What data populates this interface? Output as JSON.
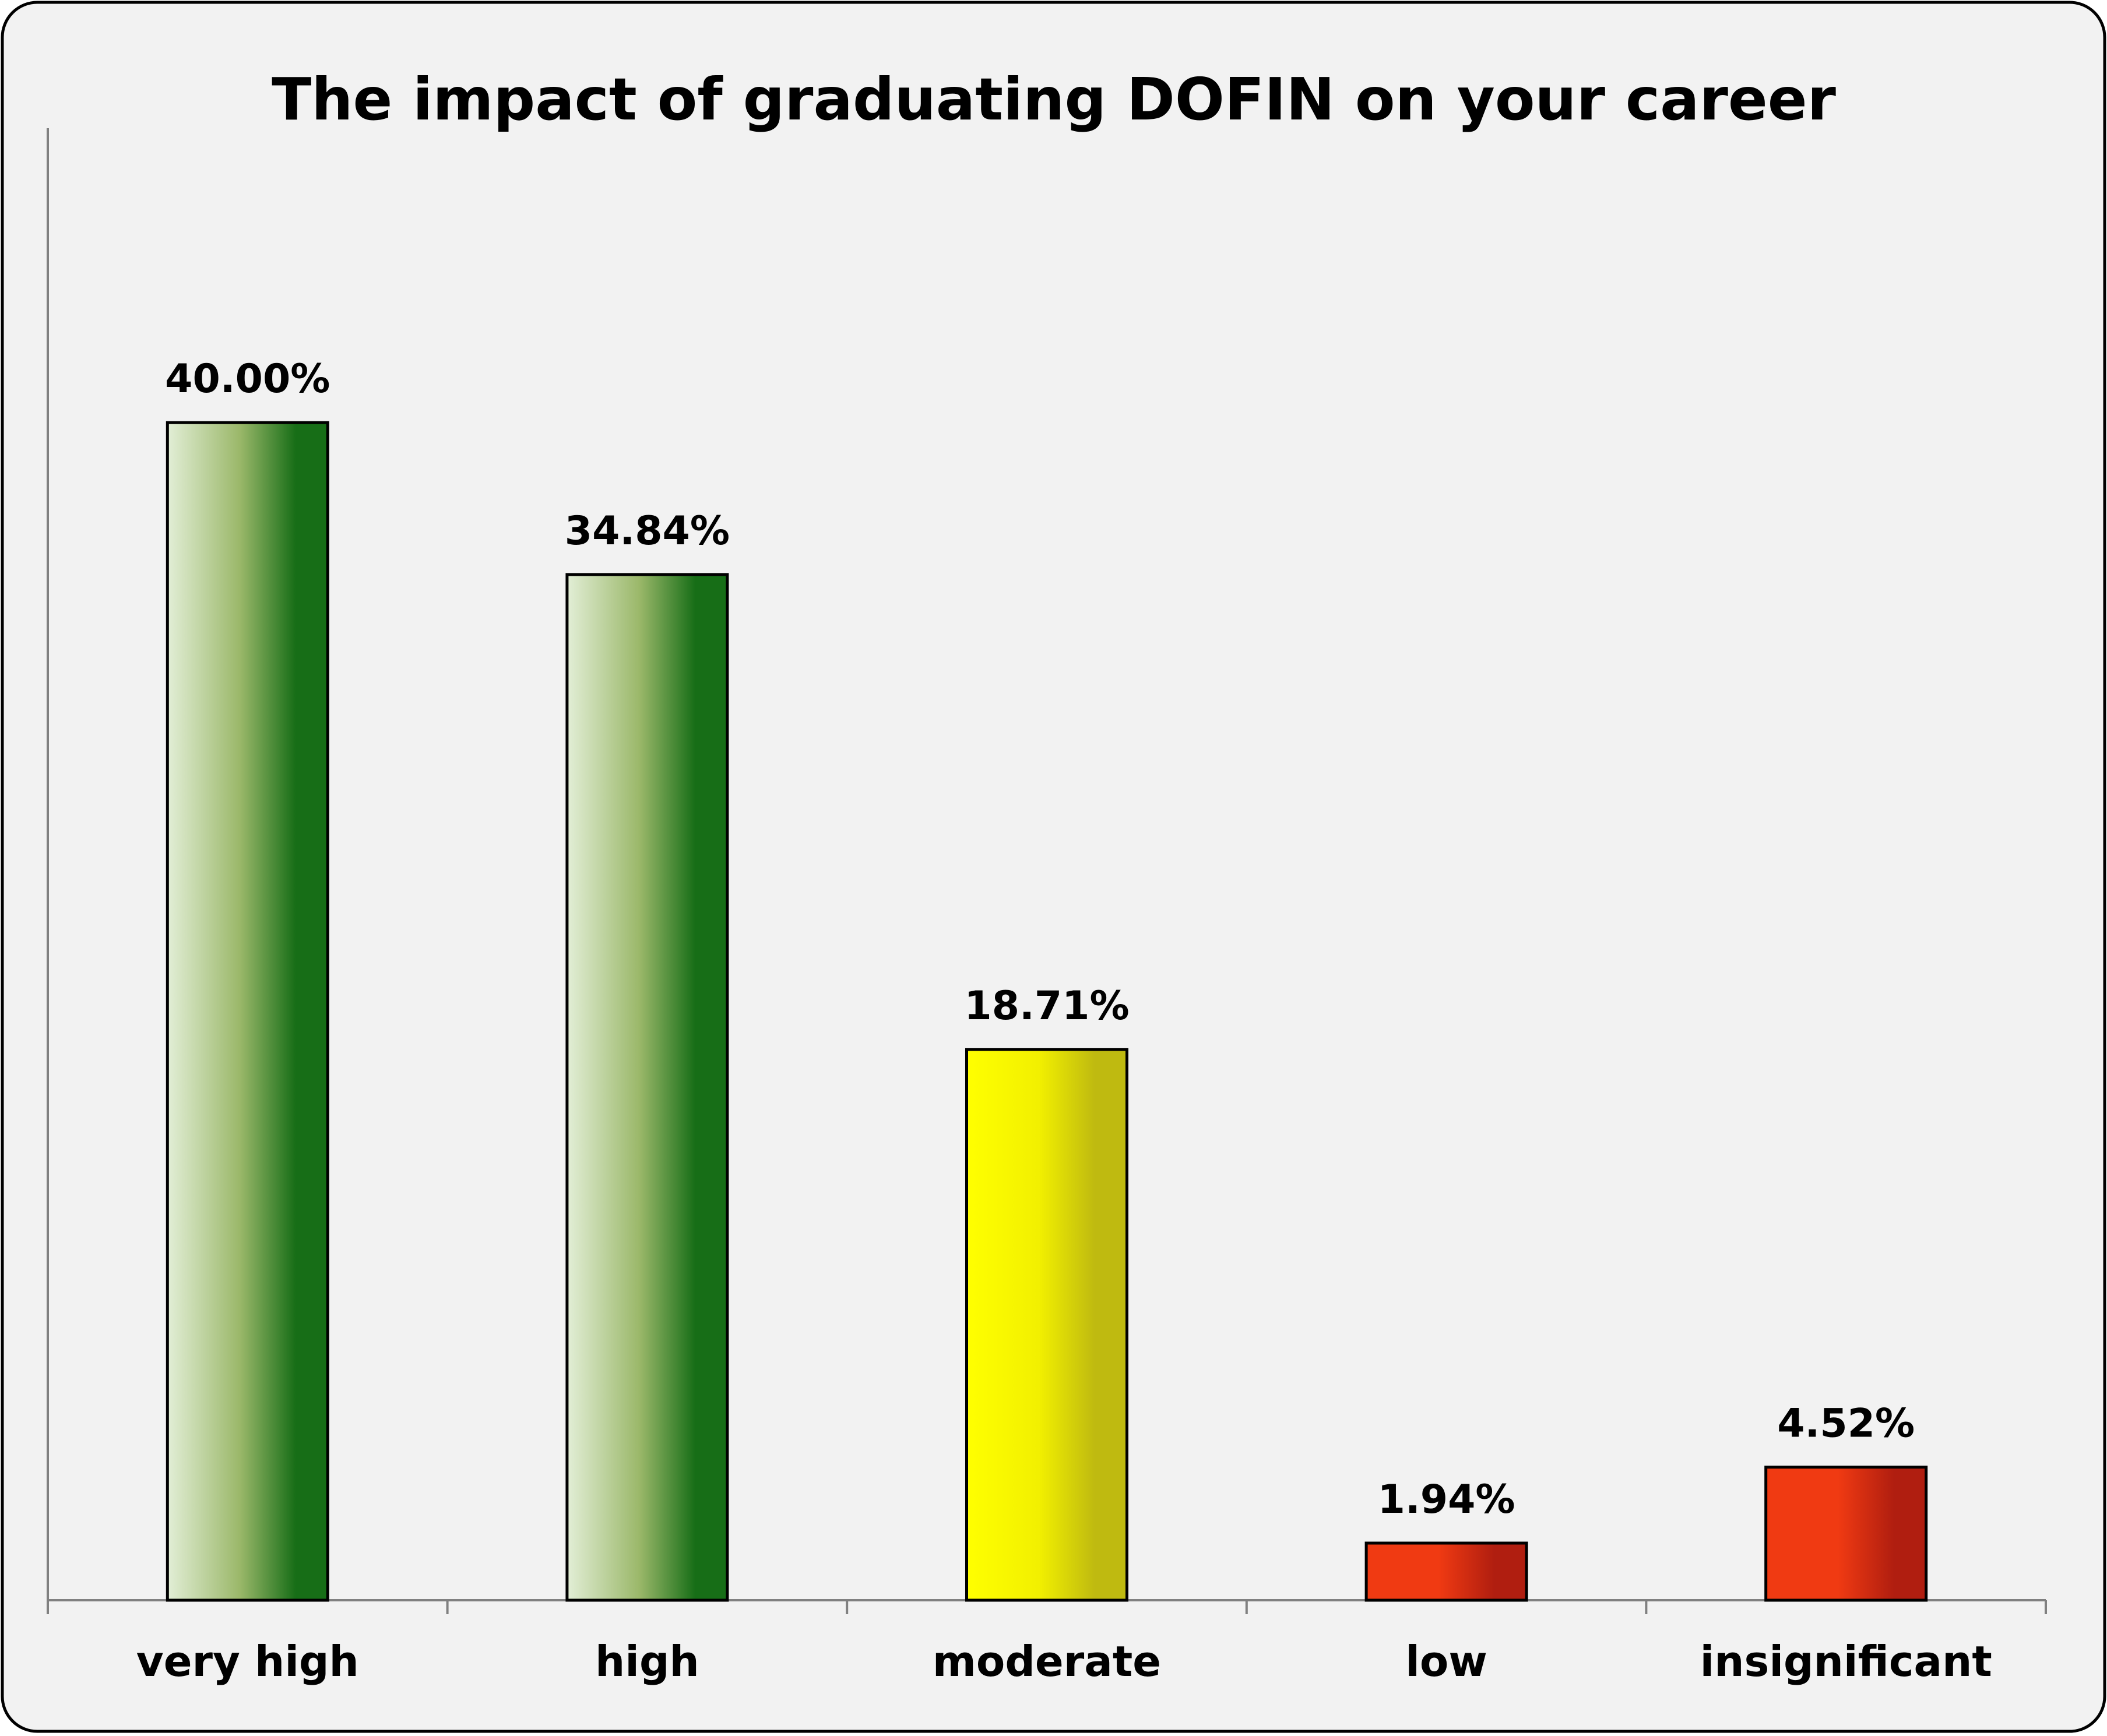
{
  "chart_data": {
    "type": "bar",
    "title": "The impact of graduating DOFIN on your career",
    "categories": [
      "very high",
      "high",
      "moderate",
      "low",
      "insignificant"
    ],
    "values": [
      40.0,
      34.84,
      18.71,
      1.94,
      4.52
    ],
    "value_labels": [
      "40.00%",
      "34.84%",
      "18.71%",
      "1.94%",
      "4.52%"
    ],
    "unit": "%",
    "ylim": [
      0,
      45
    ],
    "grid": false,
    "legend": "none",
    "xlabel": "",
    "ylabel": "",
    "bar_colors": [
      {
        "light": "#e2eed6",
        "mid": "#9bb86a",
        "dark": "#176e17"
      },
      {
        "light": "#e2eed6",
        "mid": "#9bb86a",
        "dark": "#176e17"
      },
      {
        "light": "#ffff00",
        "mid": "#f2f000",
        "dark": "#bfba10"
      },
      {
        "light": "#f03a12",
        "mid": "#f03a12",
        "dark": "#b01e10"
      },
      {
        "light": "#f03a12",
        "mid": "#f03a12",
        "dark": "#b01e10"
      }
    ],
    "background": "#f2f2f2",
    "border_color": "#000000",
    "axis_color": "#808080"
  }
}
